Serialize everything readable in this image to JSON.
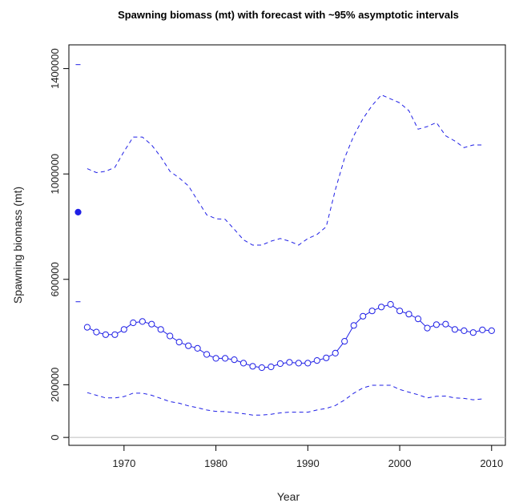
{
  "chart_data": {
    "type": "line",
    "title": "Spawning biomass (mt) with forecast with ~95% asymptotic intervals",
    "xlabel": "Year",
    "ylabel": "Spawning biomass (mt)",
    "xlim": [
      1964,
      2011.5
    ],
    "ylim": [
      -30000,
      1490000
    ],
    "x_ticks": [
      1970,
      1980,
      1990,
      2000,
      2010
    ],
    "x_tick_labels": [
      "1970",
      "1980",
      "1990",
      "2000",
      "2010"
    ],
    "y_ticks": [
      0,
      200000,
      600000,
      1000000,
      1400000
    ],
    "y_tick_labels": [
      "0",
      "200000",
      "600000",
      "1000000",
      "1400000"
    ],
    "grid": false,
    "reference_line": {
      "y": 0,
      "color": "#bdbdbd"
    },
    "colors": {
      "series": "#1f1fe6",
      "axis": "#000000"
    },
    "virgin": {
      "x": 1965,
      "estimate": 855000,
      "upper": 1415000,
      "lower": 515000
    },
    "series": [
      {
        "role": "estimate",
        "style": "solid-with-open-circles",
        "x": [
          1966,
          1967,
          1968,
          1969,
          1970,
          1971,
          1972,
          1973,
          1974,
          1975,
          1976,
          1977,
          1978,
          1979,
          1980,
          1981,
          1982,
          1983,
          1984,
          1985,
          1986,
          1987,
          1988,
          1989,
          1990,
          1991,
          1992,
          1993,
          1994,
          1995,
          1996,
          1997,
          1998,
          1999,
          2000,
          2001,
          2002,
          2003,
          2004,
          2005,
          2006,
          2007,
          2008,
          2009,
          2010
        ],
        "values": [
          418000,
          400000,
          390000,
          390000,
          410000,
          435000,
          440000,
          430000,
          410000,
          385000,
          362000,
          348000,
          338000,
          315000,
          300000,
          300000,
          295000,
          282000,
          270000,
          265000,
          268000,
          280000,
          285000,
          282000,
          282000,
          292000,
          302000,
          320000,
          365000,
          425000,
          460000,
          480000,
          495000,
          505000,
          480000,
          468000,
          450000,
          415000,
          428000,
          430000,
          410000,
          405000,
          398000,
          408000,
          405000
        ]
      },
      {
        "role": "upper-95",
        "style": "dashed",
        "x": [
          1966,
          1967,
          1968,
          1969,
          1970,
          1971,
          1972,
          1973,
          1974,
          1975,
          1976,
          1977,
          1978,
          1979,
          1980,
          1981,
          1982,
          1983,
          1984,
          1985,
          1986,
          1987,
          1988,
          1989,
          1990,
          1991,
          1992,
          1993,
          1994,
          1995,
          1996,
          1997,
          1998,
          1999,
          2000,
          2001,
          2002,
          2003,
          2004,
          2005,
          2006,
          2007,
          2008,
          2009
        ],
        "values": [
          1020000,
          1005000,
          1010000,
          1025000,
          1085000,
          1140000,
          1140000,
          1110000,
          1065000,
          1010000,
          985000,
          955000,
          900000,
          845000,
          830000,
          828000,
          790000,
          750000,
          730000,
          730000,
          745000,
          755000,
          745000,
          730000,
          755000,
          770000,
          800000,
          940000,
          1060000,
          1145000,
          1210000,
          1260000,
          1300000,
          1285000,
          1270000,
          1240000,
          1170000,
          1180000,
          1195000,
          1145000,
          1125000,
          1100000,
          1110000,
          1110000
        ]
      },
      {
        "role": "lower-95",
        "style": "dashed",
        "x": [
          1966,
          1967,
          1968,
          1969,
          1970,
          1971,
          1972,
          1973,
          1974,
          1975,
          1976,
          1977,
          1978,
          1979,
          1980,
          1981,
          1982,
          1983,
          1984,
          1985,
          1986,
          1987,
          1988,
          1989,
          1990,
          1991,
          1992,
          1993,
          1994,
          1995,
          1996,
          1997,
          1998,
          1999,
          2000,
          2001,
          2002,
          2003,
          2004,
          2005,
          2006,
          2007,
          2008,
          2009
        ],
        "values": [
          170000,
          160000,
          150000,
          150000,
          155000,
          168000,
          168000,
          160000,
          148000,
          136000,
          130000,
          120000,
          113000,
          104000,
          99000,
          98000,
          94000,
          90000,
          85000,
          85000,
          88000,
          93000,
          96000,
          96000,
          96000,
          104000,
          110000,
          121000,
          142000,
          168000,
          188000,
          198000,
          198000,
          198000,
          182000,
          172000,
          162000,
          150000,
          156000,
          157000,
          150000,
          148000,
          143000,
          146000
        ]
      }
    ]
  }
}
